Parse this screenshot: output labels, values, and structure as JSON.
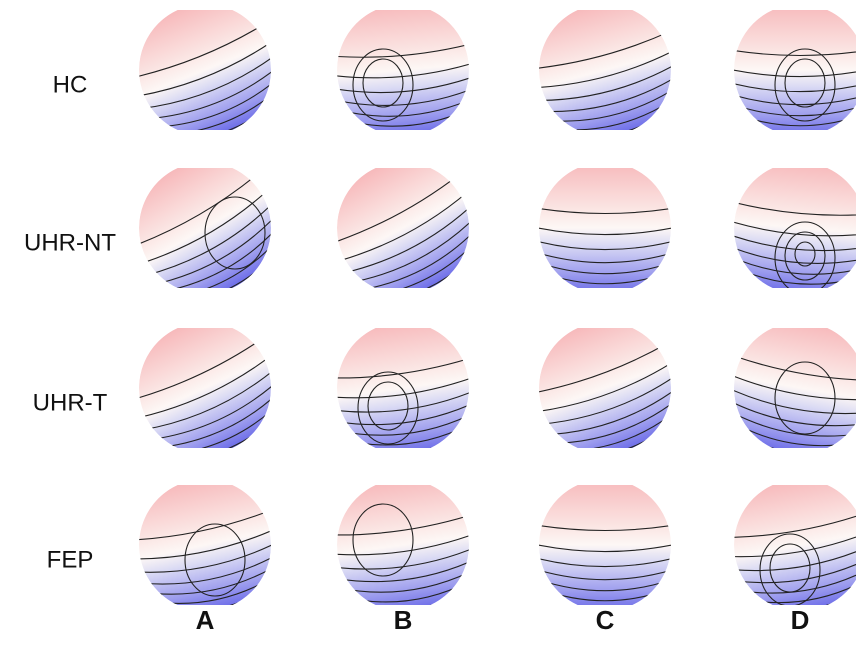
{
  "rows": [
    "HC",
    "UHR-NT",
    "UHR-T",
    "FEP"
  ],
  "columns": [
    "A",
    "B",
    "C",
    "D"
  ]
}
